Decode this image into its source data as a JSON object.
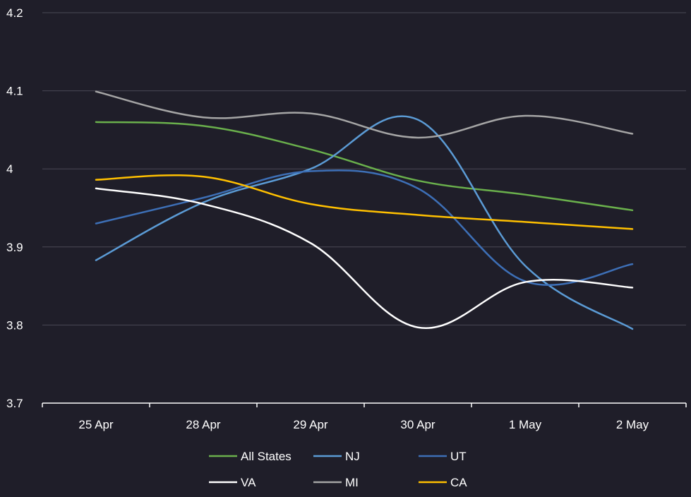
{
  "chart_data": {
    "type": "line",
    "title": "",
    "xlabel": "",
    "ylabel": "",
    "categories": [
      "25 Apr",
      "28 Apr",
      "29 Apr",
      "30 Apr",
      "1 May",
      "2 May"
    ],
    "ylim": [
      3.7,
      4.2
    ],
    "yticks": [
      "4.2",
      "4.1",
      "4",
      "3.9",
      "3.8",
      "3.7"
    ],
    "grid": true,
    "legend_position": "bottom",
    "series": [
      {
        "name": "All States",
        "color": "#6ab04c",
        "values": [
          4.06,
          4.055,
          4.025,
          3.985,
          3.967,
          3.947
        ]
      },
      {
        "name": "NJ",
        "color": "#5b9bd5",
        "values": [
          3.883,
          3.957,
          4.0,
          4.063,
          3.876,
          3.795
        ]
      },
      {
        "name": "UT",
        "color": "#3d6fb6",
        "values": [
          3.93,
          3.963,
          3.997,
          3.975,
          3.856,
          3.878
        ]
      },
      {
        "name": "VA",
        "color": "#ffffff",
        "values": [
          3.975,
          3.955,
          3.905,
          3.797,
          3.855,
          3.848
        ]
      },
      {
        "name": "MI",
        "color": "#a5a5a5",
        "values": [
          4.099,
          4.066,
          4.071,
          4.04,
          4.068,
          4.045
        ]
      },
      {
        "name": "CA",
        "color": "#ffc000",
        "values": [
          3.986,
          3.99,
          3.955,
          3.941,
          3.932,
          3.923
        ]
      }
    ]
  }
}
